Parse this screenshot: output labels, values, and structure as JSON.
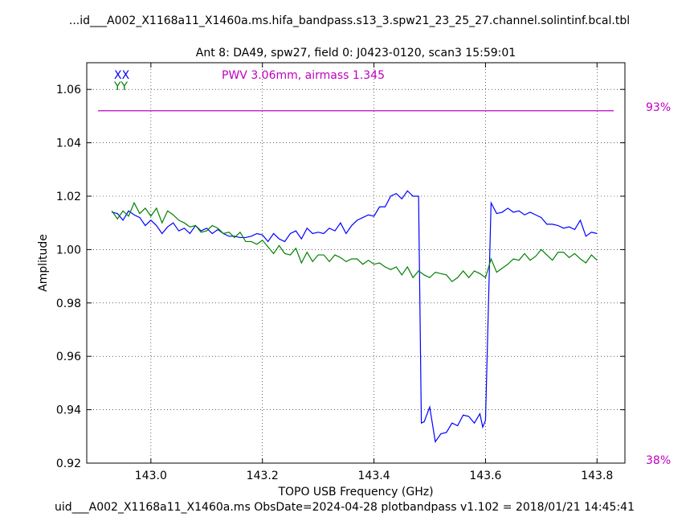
{
  "chart_data": {
    "type": "line",
    "file_title": "...id___A002_X1168a11_X1460a.ms.hifa_bandpass.s13_3.spw21_23_25_27.channel.solintinf.bcal.tbl",
    "subtitle": "Ant 8: DA49,  spw27,  field 0: J0423-0120,  scan3  15:59:01",
    "xlabel": "TOPO USB Frequency (GHz)",
    "ylabel": "Amplitude",
    "footer": "uid___A002_X1168a11_X1460a.ms  ObsDate=2024-04-28   plotbandpass v1.102 = 2018/01/21 14:45:41",
    "xlim": [
      142.885,
      143.85
    ],
    "ylim": [
      0.92,
      1.07
    ],
    "xticks": [
      "143.0",
      "143.2",
      "143.4",
      "143.6",
      "143.8"
    ],
    "yticks": [
      "0.92",
      "0.94",
      "0.96",
      "0.98",
      "1.00",
      "1.02",
      "1.04",
      "1.06"
    ],
    "annotation": "PWV 3.06mm, airmass 1.345",
    "transmission": {
      "label_top": "93%",
      "label_bottom": "38%",
      "x": [
        142.905,
        143.83
      ],
      "y": [
        1.052,
        1.052
      ]
    },
    "series": [
      {
        "name": "XX",
        "color": "#0000ff",
        "x": [
          142.93,
          142.94,
          142.95,
          142.96,
          142.97,
          142.98,
          142.99,
          143.0,
          143.01,
          143.02,
          143.03,
          143.04,
          143.05,
          143.06,
          143.07,
          143.08,
          143.09,
          143.1,
          143.11,
          143.12,
          143.13,
          143.14,
          143.15,
          143.16,
          143.17,
          143.18,
          143.19,
          143.2,
          143.21,
          143.22,
          143.23,
          143.24,
          143.25,
          143.26,
          143.27,
          143.28,
          143.29,
          143.3,
          143.31,
          143.32,
          143.33,
          143.34,
          143.35,
          143.36,
          143.37,
          143.38,
          143.39,
          143.4,
          143.41,
          143.42,
          143.43,
          143.44,
          143.45,
          143.46,
          143.47,
          143.48,
          143.485,
          143.49,
          143.5,
          143.51,
          143.52,
          143.53,
          143.54,
          143.55,
          143.56,
          143.57,
          143.58,
          143.59,
          143.595,
          143.6,
          143.61,
          143.62,
          143.63,
          143.64,
          143.65,
          143.66,
          143.67,
          143.68,
          143.69,
          143.7,
          143.71,
          143.72,
          143.73,
          143.74,
          143.75,
          143.76,
          143.77,
          143.78,
          143.79,
          143.8
        ],
        "y": [
          1.014,
          1.0135,
          1.011,
          1.0145,
          1.013,
          1.012,
          1.009,
          1.011,
          1.009,
          1.006,
          1.0085,
          1.01,
          1.007,
          1.008,
          1.006,
          1.009,
          1.007,
          1.008,
          1.006,
          1.0075,
          1.006,
          1.005,
          1.005,
          1.0045,
          1.0045,
          1.005,
          1.006,
          1.0055,
          1.003,
          1.006,
          1.004,
          1.003,
          1.006,
          1.007,
          1.004,
          1.008,
          1.006,
          1.0065,
          1.006,
          1.008,
          1.007,
          1.01,
          1.006,
          1.009,
          1.011,
          1.012,
          1.013,
          1.0125,
          1.016,
          1.016,
          1.02,
          1.021,
          1.019,
          1.022,
          1.02,
          1.02,
          0.935,
          0.9355,
          0.941,
          0.928,
          0.931,
          0.9315,
          0.935,
          0.934,
          0.938,
          0.9375,
          0.935,
          0.9385,
          0.9335,
          0.936,
          1.0175,
          1.0135,
          1.014,
          1.0155,
          1.014,
          1.0145,
          1.013,
          1.014,
          1.013,
          1.012,
          1.0095,
          1.0095,
          1.009,
          1.008,
          1.0085,
          1.0075,
          1.011,
          1.005,
          1.0065,
          1.006
        ]
      },
      {
        "name": "YY",
        "color": "#008000",
        "x": [
          142.93,
          142.94,
          142.95,
          142.96,
          142.97,
          142.98,
          142.99,
          143.0,
          143.01,
          143.02,
          143.03,
          143.04,
          143.05,
          143.06,
          143.07,
          143.08,
          143.09,
          143.1,
          143.11,
          143.12,
          143.13,
          143.14,
          143.15,
          143.16,
          143.17,
          143.18,
          143.19,
          143.2,
          143.21,
          143.22,
          143.23,
          143.24,
          143.25,
          143.26,
          143.27,
          143.28,
          143.29,
          143.3,
          143.31,
          143.32,
          143.33,
          143.34,
          143.35,
          143.36,
          143.37,
          143.38,
          143.39,
          143.4,
          143.41,
          143.42,
          143.43,
          143.44,
          143.45,
          143.46,
          143.47,
          143.48,
          143.49,
          143.5,
          143.51,
          143.52,
          143.53,
          143.54,
          143.55,
          143.56,
          143.57,
          143.58,
          143.59,
          143.6,
          143.61,
          143.62,
          143.63,
          143.64,
          143.65,
          143.66,
          143.67,
          143.68,
          143.69,
          143.7,
          143.71,
          143.72,
          143.73,
          143.74,
          143.75,
          143.76,
          143.77,
          143.78,
          143.79,
          143.8
        ],
        "y": [
          1.0145,
          1.0115,
          1.0145,
          1.0125,
          1.0175,
          1.0135,
          1.0155,
          1.0125,
          1.0155,
          1.01,
          1.0145,
          1.013,
          1.011,
          1.01,
          1.0085,
          1.009,
          1.0065,
          1.007,
          1.009,
          1.008,
          1.006,
          1.0065,
          1.0045,
          1.0065,
          1.003,
          1.003,
          1.002,
          1.0035,
          1.001,
          0.9985,
          1.0015,
          0.9985,
          0.998,
          1.0005,
          0.995,
          0.999,
          0.9955,
          0.998,
          0.998,
          0.9955,
          0.998,
          0.997,
          0.9955,
          0.9965,
          0.9965,
          0.9945,
          0.996,
          0.9945,
          0.995,
          0.9935,
          0.9925,
          0.9935,
          0.9905,
          0.9935,
          0.9895,
          0.992,
          0.9905,
          0.9895,
          0.9915,
          0.991,
          0.9905,
          0.988,
          0.9895,
          0.992,
          0.9895,
          0.992,
          0.991,
          0.9895,
          0.9965,
          0.9915,
          0.993,
          0.9945,
          0.9965,
          0.996,
          0.9985,
          0.996,
          0.9975,
          1.0,
          0.998,
          0.996,
          0.999,
          0.999,
          0.997,
          0.9985,
          0.9965,
          0.995,
          0.998,
          0.996
        ]
      }
    ]
  }
}
